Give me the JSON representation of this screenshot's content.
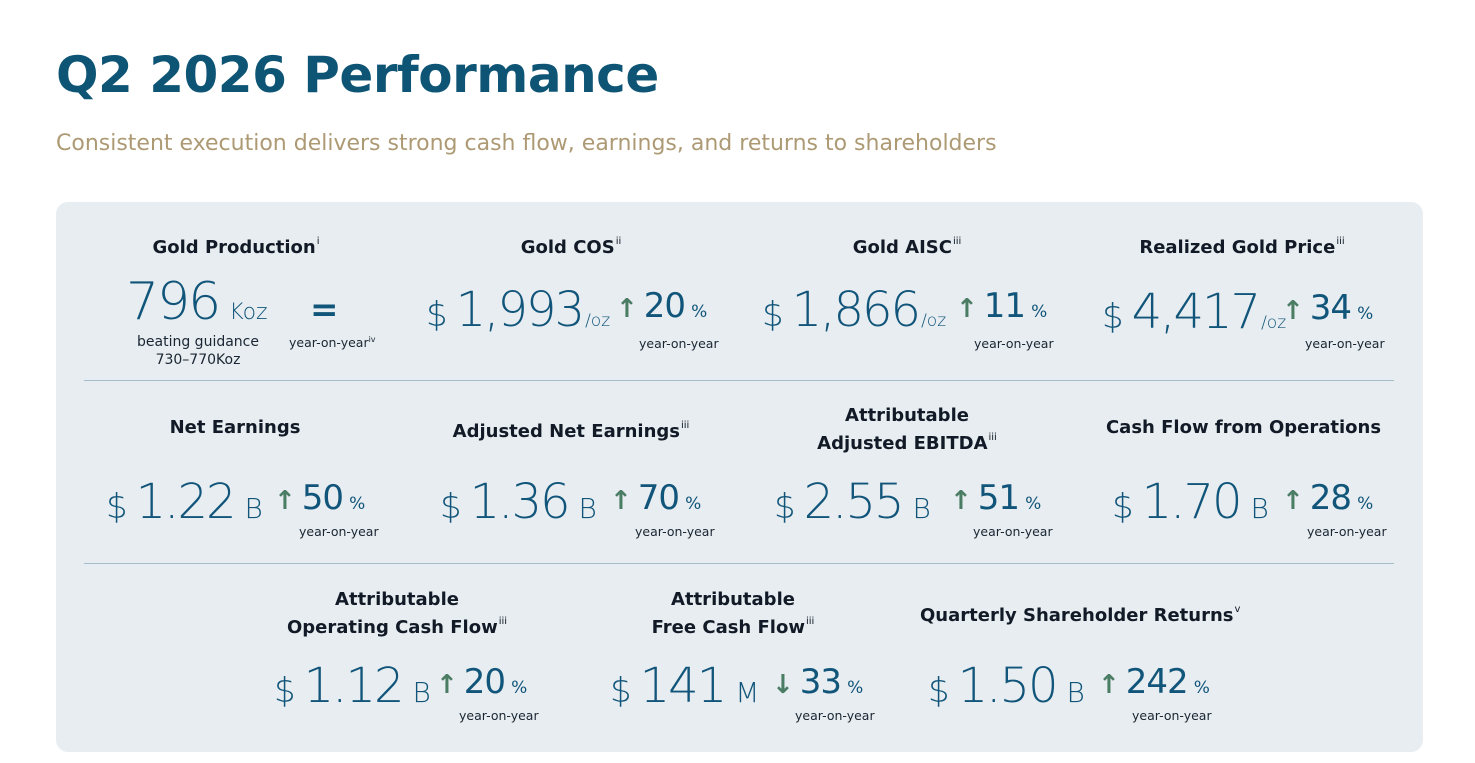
{
  "header": {
    "title": "Q2 2026 Performance",
    "subtitle": "Consistent execution delivers strong cash flow, earnings, and returns to shareholders"
  },
  "colors": {
    "title": "#0e5575",
    "subtitle": "#ad9a74",
    "panel": "#e7edf0",
    "value": "#11557a",
    "arrow": "#4b7d64"
  },
  "metrics": {
    "gold_production": {
      "label": "Gold Production",
      "note": "i",
      "value": "796",
      "unit": "Koz",
      "guidance_line1": "beating guidance",
      "guidance_line2": "730–770Koz",
      "change_symbol": "=",
      "yoy": "year-on-year",
      "yoy_note": "iv"
    },
    "gold_cos": {
      "label": "Gold COS",
      "note": "ii",
      "currency": "$",
      "value": "1,993",
      "unit": "/oz",
      "direction": "up",
      "change": "20",
      "pct": "%",
      "yoy": "year-on-year"
    },
    "gold_aisc": {
      "label": "Gold AISC",
      "note": "iii",
      "currency": "$",
      "value": "1,866",
      "unit": "/oz",
      "direction": "up",
      "change": "11",
      "pct": "%",
      "yoy": "year-on-year"
    },
    "realized_gold_price": {
      "label": "Realized Gold Price",
      "note": "iii",
      "currency": "$",
      "value": "4,417",
      "unit": "/oz",
      "direction": "up",
      "change": "34",
      "pct": "%",
      "yoy": "year-on-year"
    },
    "net_earnings": {
      "label": "Net Earnings",
      "currency": "$",
      "value": "1.22",
      "unit": "B",
      "direction": "up",
      "change": "50",
      "pct": "%",
      "yoy": "year-on-year"
    },
    "adjusted_net_earnings": {
      "label": "Adjusted Net Earnings",
      "note": "iii",
      "currency": "$",
      "value": "1.36",
      "unit": "B",
      "direction": "up",
      "change": "70",
      "pct": "%",
      "yoy": "year-on-year"
    },
    "attributable_adjusted_ebitda": {
      "label_line1": "Attributable",
      "label_line2": "Adjusted EBITDA",
      "note": "iii",
      "currency": "$",
      "value": "2.55",
      "unit": "B",
      "direction": "up",
      "change": "51",
      "pct": "%",
      "yoy": "year-on-year"
    },
    "cash_flow_operations": {
      "label": "Cash Flow from Operations",
      "currency": "$",
      "value": "1.70",
      "unit": "B",
      "direction": "up",
      "change": "28",
      "pct": "%",
      "yoy": "year-on-year"
    },
    "attributable_operating_cash_flow": {
      "label_line1": "Attributable",
      "label_line2": "Operating Cash Flow",
      "note": "iii",
      "currency": "$",
      "value": "1.12",
      "unit": "B",
      "direction": "up",
      "change": "20",
      "pct": "%",
      "yoy": "year-on-year"
    },
    "attributable_free_cash_flow": {
      "label_line1": "Attributable",
      "label_line2": "Free Cash Flow",
      "note": "iii",
      "currency": "$",
      "value": "141",
      "unit": "M",
      "direction": "down",
      "change": "33",
      "pct": "%",
      "yoy": "year-on-year"
    },
    "quarterly_shareholder_returns": {
      "label": "Quarterly Shareholder Returns",
      "note": "v",
      "currency": "$",
      "value": "1.50",
      "unit": "B",
      "direction": "up",
      "change": "242",
      "pct": "%",
      "yoy": "year-on-year"
    }
  }
}
